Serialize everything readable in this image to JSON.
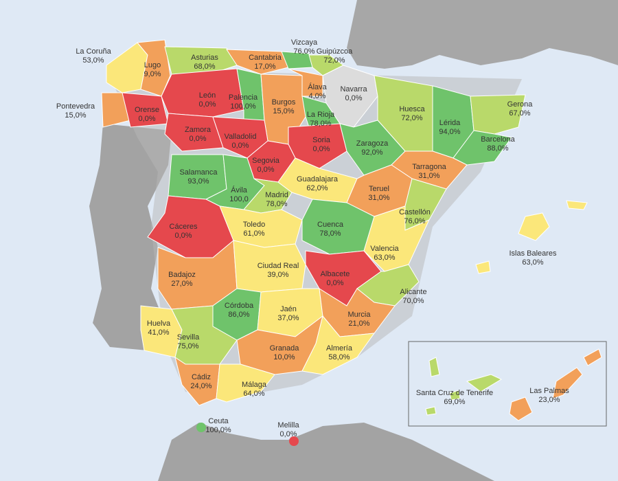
{
  "colors": {
    "sea": "#dfe9f5",
    "land_gray": "#9b9b9b",
    "red": "#e5484d",
    "orange": "#f2a05a",
    "yellow": "#fbe77a",
    "lightgreen": "#b9d96a",
    "green": "#6fc36b",
    "nodata": "#dcdcdc"
  },
  "provinces": [
    {
      "name": "La Coruña",
      "value": "53,0%",
      "color": "yellow"
    },
    {
      "name": "Lugo",
      "value": "9,0%",
      "color": "orange"
    },
    {
      "name": "Asturias",
      "value": "68,0%",
      "color": "lightgreen"
    },
    {
      "name": "Cantabria",
      "value": "17,0%",
      "color": "orange"
    },
    {
      "name": "Vizcaya",
      "value": "76,0%",
      "color": "green"
    },
    {
      "name": "Guipúzcoa",
      "value": "72,0%",
      "color": "lightgreen"
    },
    {
      "name": "Pontevedra",
      "value": "15,0%",
      "color": "orange"
    },
    {
      "name": "Orense",
      "value": "0,0%",
      "color": "red"
    },
    {
      "name": "León",
      "value": "0,0%",
      "color": "red"
    },
    {
      "name": "Palencia",
      "value": "100,0%",
      "color": "green"
    },
    {
      "name": "Burgos",
      "value": "15,0%",
      "color": "orange"
    },
    {
      "name": "Álava",
      "value": "4,0%",
      "color": "orange"
    },
    {
      "name": "Navarra",
      "value": "0,0%",
      "color": "nodata"
    },
    {
      "name": "La Rioja",
      "value": "78,0%",
      "color": "green"
    },
    {
      "name": "Huesca",
      "value": "72,0%",
      "color": "lightgreen"
    },
    {
      "name": "Lérida",
      "value": "94,0%",
      "color": "green"
    },
    {
      "name": "Gerona",
      "value": "67,0%",
      "color": "lightgreen"
    },
    {
      "name": "Barcelona",
      "value": "88,0%",
      "color": "green"
    },
    {
      "name": "Zamora",
      "value": "0,0%",
      "color": "red"
    },
    {
      "name": "Valladolid",
      "value": "0,0%",
      "color": "red"
    },
    {
      "name": "Soria",
      "value": "0,0%",
      "color": "red"
    },
    {
      "name": "Zaragoza",
      "value": "92,0%",
      "color": "green"
    },
    {
      "name": "Segovia",
      "value": "0,0%",
      "color": "red"
    },
    {
      "name": "Tarragona",
      "value": "31,0%",
      "color": "orange"
    },
    {
      "name": "Salamanca",
      "value": "93,0%",
      "color": "green"
    },
    {
      "name": "Ávila",
      "value": "100,0",
      "color": "green"
    },
    {
      "name": "Madrid",
      "value": "78,0%",
      "color": "lightgreen"
    },
    {
      "name": "Guadalajara",
      "value": "62,0%",
      "color": "yellow"
    },
    {
      "name": "Teruel",
      "value": "31,0%",
      "color": "orange"
    },
    {
      "name": "Castellón",
      "value": "76,0%",
      "color": "lightgreen"
    },
    {
      "name": "Cáceres",
      "value": "0,0%",
      "color": "red"
    },
    {
      "name": "Toledo",
      "value": "61,0%",
      "color": "yellow"
    },
    {
      "name": "Cuenca",
      "value": "78,0%",
      "color": "green"
    },
    {
      "name": "Valencia",
      "value": "63,0%",
      "color": "yellow"
    },
    {
      "name": "Badajoz",
      "value": "27,0%",
      "color": "orange"
    },
    {
      "name": "Ciudad Real",
      "value": "39,0%",
      "color": "yellow"
    },
    {
      "name": "Albacete",
      "value": "0,0%",
      "color": "red"
    },
    {
      "name": "Alicante",
      "value": "70,0%",
      "color": "lightgreen"
    },
    {
      "name": "Córdoba",
      "value": "86,0%",
      "color": "green"
    },
    {
      "name": "Jaén",
      "value": "37,0%",
      "color": "yellow"
    },
    {
      "name": "Murcia",
      "value": "21,0%",
      "color": "orange"
    },
    {
      "name": "Huelva",
      "value": "41,0%",
      "color": "yellow"
    },
    {
      "name": "Sevilla",
      "value": "75,0%",
      "color": "lightgreen"
    },
    {
      "name": "Granada",
      "value": "10,0%",
      "color": "orange"
    },
    {
      "name": "Almería",
      "value": "58,0%",
      "color": "yellow"
    },
    {
      "name": "Cádiz",
      "value": "24,0%",
      "color": "orange"
    },
    {
      "name": "Málaga",
      "value": "64,0%",
      "color": "yellow"
    },
    {
      "name": "Islas Baleares",
      "value": "63,0%",
      "color": "yellow"
    },
    {
      "name": "Santa Cruz de Tenerife",
      "value": "69,0%",
      "color": "lightgreen"
    },
    {
      "name": "Las Palmas",
      "value": "23,0%",
      "color": "orange"
    },
    {
      "name": "Ceuta",
      "value": "100,0%",
      "color": "green"
    },
    {
      "name": "Melilla",
      "value": "0,0%",
      "color": "red"
    }
  ]
}
